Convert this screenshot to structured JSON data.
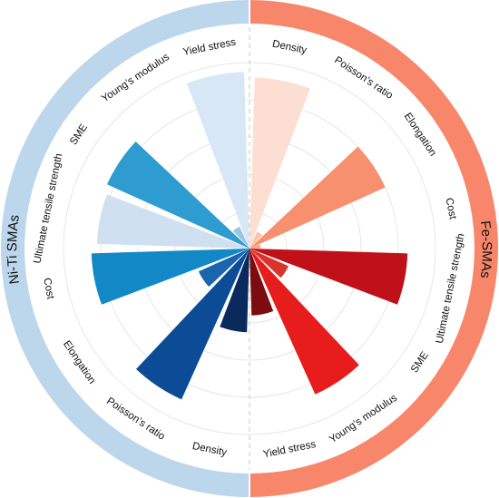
{
  "chart_data": {
    "type": "radial-bar",
    "title": "",
    "rmax": 10,
    "grid": true,
    "gridRings": 5,
    "groups": [
      {
        "name": "Ni-Ti SMAs",
        "ring_color": "#bcd6ec",
        "categories": [
          {
            "label": "Yield stress",
            "value": 9.5,
            "color": "#d8e7f5"
          },
          {
            "label": "Young’s modulus",
            "value": 1.3,
            "color": "#9cc4e4"
          },
          {
            "label": "SME",
            "value": 8.4,
            "color": "#2e9bd1"
          },
          {
            "label": "Ultimate tensile strength",
            "value": 8.2,
            "color": "#cfe0f1"
          },
          {
            "label": "Cost",
            "value": 8.5,
            "color": "#1388c7"
          },
          {
            "label": "Elongation",
            "value": 3.0,
            "color": "#1a65ad"
          },
          {
            "label": "Poisson’s ratio",
            "value": 8.9,
            "color": "#0c4c96"
          },
          {
            "label": "Density",
            "value": 4.5,
            "color": "#0a2a5e"
          }
        ]
      },
      {
        "name": "Fe-SMAs",
        "ring_color": "#f7866a",
        "categories": [
          {
            "label": "Density",
            "value": 9.2,
            "color": "#fcdfd2"
          },
          {
            "label": "Poisson’s ratio",
            "value": 1.0,
            "color": "#fbc3ab"
          },
          {
            "label": "Elongation",
            "value": 8.0,
            "color": "#f7906f"
          },
          {
            "label": "Cost",
            "value": 0.6,
            "color": "#f3a183"
          },
          {
            "label": "Ultimate tensile strength",
            "value": 8.5,
            "color": "#c0101a"
          },
          {
            "label": "SME",
            "value": 2.3,
            "color": "#d9342b"
          },
          {
            "label": "Young’s modulus",
            "value": 8.6,
            "color": "#e71c1c"
          },
          {
            "label": "Yield stress",
            "value": 3.6,
            "color": "#7c0c10"
          }
        ]
      }
    ]
  }
}
